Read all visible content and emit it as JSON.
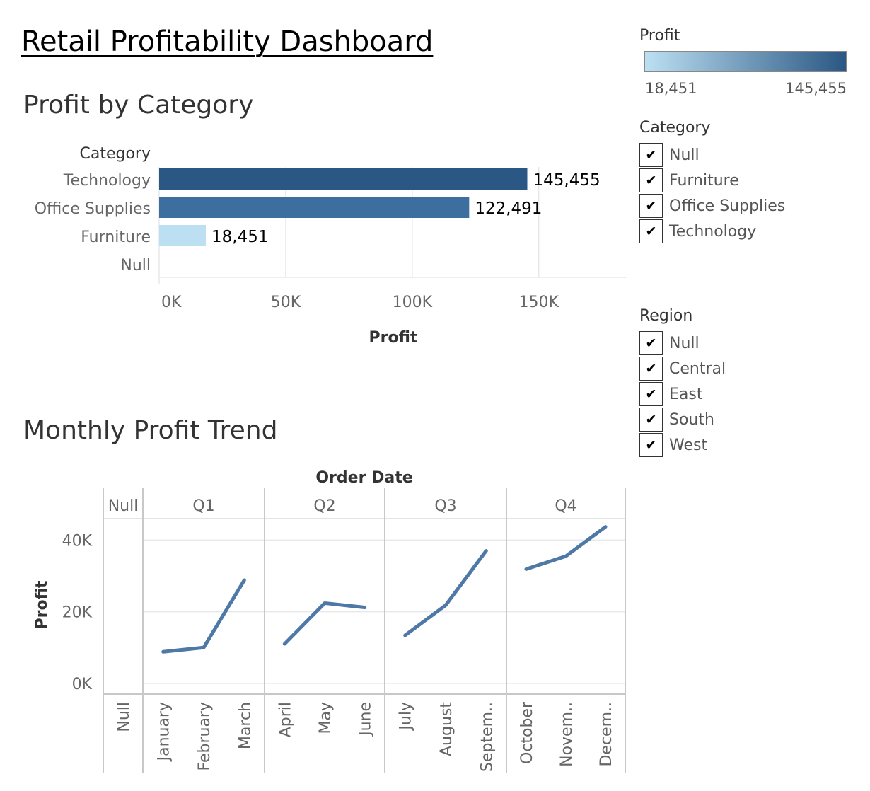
{
  "dashboard": {
    "title": "Retail Profitability Dashboard"
  },
  "bar_chart_title": "Profit by Category",
  "line_chart_title": "Monthly Profit Trend",
  "legend": {
    "title": "Profit",
    "min_label": "18,451",
    "max_label": "145,455",
    "color_min": "#bcdff2",
    "color_max": "#2a5783"
  },
  "category_filter": {
    "title": "Category",
    "items": [
      "Null",
      "Furniture",
      "Office Supplies",
      "Technology"
    ],
    "checked": [
      true,
      true,
      true,
      true
    ]
  },
  "region_filter": {
    "title": "Region",
    "items": [
      "Null",
      "Central",
      "East",
      "South",
      "West"
    ],
    "checked": [
      true,
      true,
      true,
      true,
      true
    ]
  },
  "check_mark": "✔",
  "chart_data": [
    {
      "type": "bar",
      "orientation": "horizontal",
      "title": "Profit by Category",
      "row_header": "Category",
      "categories": [
        "Technology",
        "Office Supplies",
        "Furniture",
        "Null"
      ],
      "values": [
        145455,
        122491,
        18451,
        null
      ],
      "value_labels": [
        "145,455",
        "122,491",
        "18,451",
        ""
      ],
      "colors": [
        "#2a5783",
        "#3c6e9f",
        "#bcdff2",
        null
      ],
      "xlabel": "Profit",
      "xlim": [
        0,
        185000
      ],
      "xticks": [
        0,
        50000,
        100000,
        150000
      ],
      "xtick_labels": [
        "0K",
        "50K",
        "100K",
        "150K"
      ],
      "grid": true
    },
    {
      "type": "line",
      "title": "Monthly Profit Trend",
      "column_header": "Order Date",
      "quarters": [
        {
          "label": "Null",
          "months": [
            "Null"
          ],
          "values": [
            null
          ]
        },
        {
          "label": "Q1",
          "months": [
            "January",
            "February",
            "March"
          ],
          "values": [
            8800,
            10000,
            28800
          ]
        },
        {
          "label": "Q2",
          "months": [
            "April",
            "May",
            "June"
          ],
          "values": [
            11000,
            22400,
            21200
          ]
        },
        {
          "label": "Q3",
          "months": [
            "July",
            "August",
            "Septem.."
          ],
          "values": [
            13400,
            21800,
            37000
          ]
        },
        {
          "label": "Q4",
          "months": [
            "October",
            "Novem..",
            "Decem.."
          ],
          "values": [
            31900,
            35500,
            43700
          ]
        }
      ],
      "ylabel": "Profit",
      "ylim": [
        -3000,
        46000
      ],
      "yticks": [
        0,
        20000,
        40000
      ],
      "ytick_labels": [
        "0K",
        "20K",
        "40K"
      ],
      "line_color": "#4e79a7",
      "grid": true
    }
  ]
}
